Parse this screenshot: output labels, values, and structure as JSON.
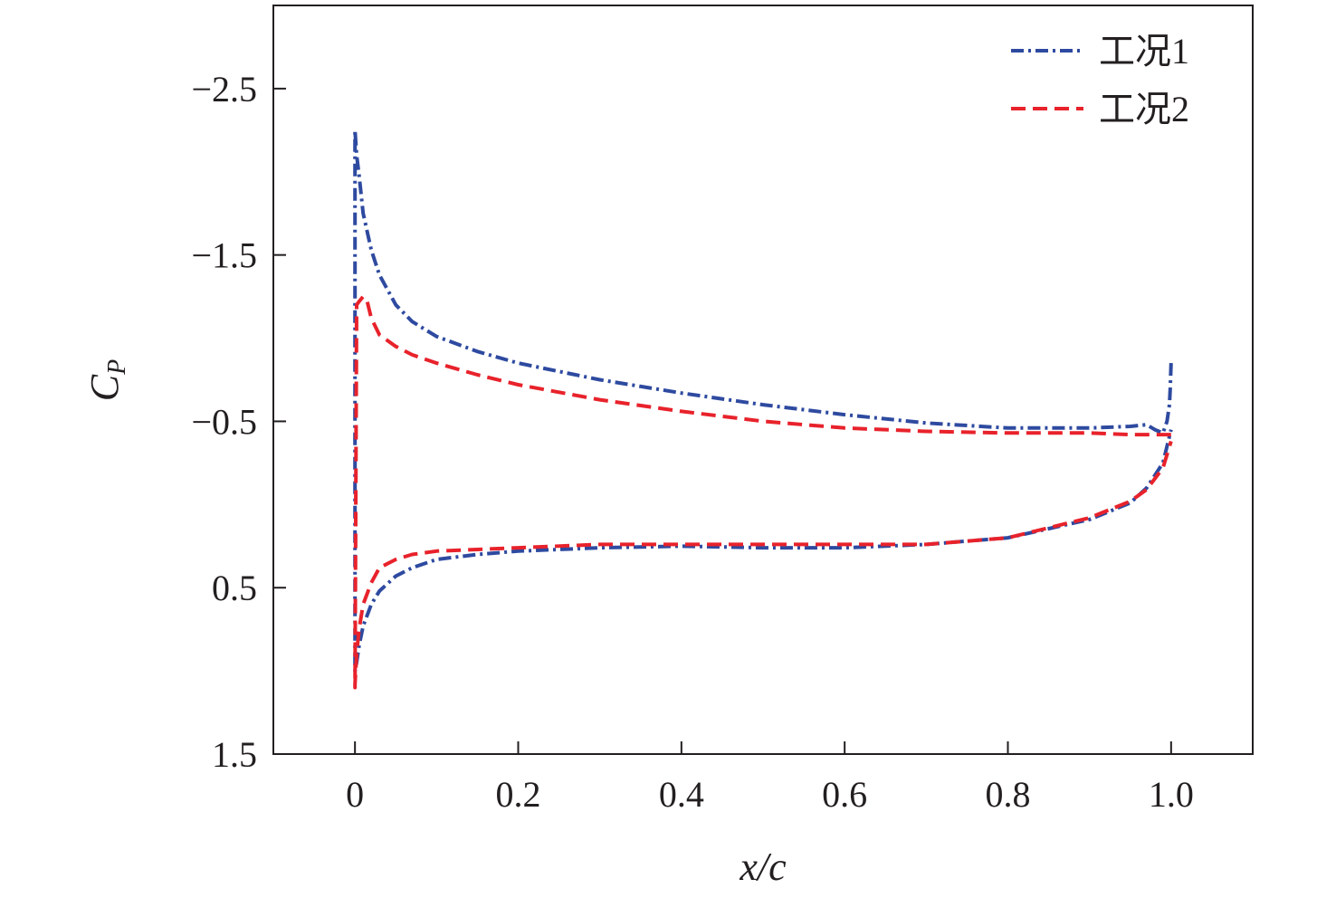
{
  "chart_data": {
    "type": "line",
    "xlabel": "x/c",
    "ylabel_main": "C",
    "ylabel_sub": "P",
    "xlim": [
      -0.1,
      1.1
    ],
    "ylim": [
      -3.0,
      1.5
    ],
    "y_inverted": true,
    "xticks": [
      0,
      0.2,
      0.4,
      0.6,
      0.8,
      1.0
    ],
    "xtick_labels": [
      "0",
      "0.2",
      "0.4",
      "0.6",
      "0.8",
      "1.0"
    ],
    "yticks": [
      -2.5,
      -1.5,
      -0.5,
      0.5,
      1.5
    ],
    "ytick_labels": [
      "−2.5",
      "−1.5",
      "−0.5",
      "0.5",
      "1.5"
    ],
    "grid": false,
    "legend_position": "top-right",
    "series": [
      {
        "name": "工况1",
        "color": "#2e4aa0",
        "dash": "dashdot",
        "x": [
          1.0,
          0.999,
          0.998,
          0.995,
          0.99,
          0.98,
          0.97,
          0.95,
          0.9,
          0.8,
          0.7,
          0.6,
          0.5,
          0.4,
          0.3,
          0.2,
          0.15,
          0.1,
          0.07,
          0.05,
          0.03,
          0.02,
          0.01,
          0.005,
          0.002,
          0.0,
          0.0,
          0.002,
          0.005,
          0.01,
          0.02,
          0.03,
          0.05,
          0.07,
          0.1,
          0.15,
          0.2,
          0.3,
          0.4,
          0.5,
          0.6,
          0.7,
          0.8,
          0.9,
          0.95,
          0.97,
          0.99,
          1.0
        ],
        "y": [
          -0.85,
          -0.7,
          -0.6,
          -0.5,
          -0.43,
          -0.45,
          -0.48,
          -0.47,
          -0.46,
          -0.46,
          -0.49,
          -0.54,
          -0.6,
          -0.67,
          -0.75,
          -0.85,
          -0.92,
          -1.01,
          -1.1,
          -1.2,
          -1.38,
          -1.53,
          -1.75,
          -1.98,
          -2.1,
          -2.25,
          1.0,
          0.95,
          0.85,
          0.73,
          0.6,
          0.52,
          0.43,
          0.38,
          0.33,
          0.3,
          0.28,
          0.26,
          0.25,
          0.26,
          0.26,
          0.24,
          0.2,
          0.09,
          -0.01,
          -0.1,
          -0.25,
          -0.45
        ]
      },
      {
        "name": "工况2",
        "color": "#e8222b",
        "dash": "dash",
        "x": [
          1.0,
          0.99,
          0.95,
          0.9,
          0.8,
          0.7,
          0.6,
          0.5,
          0.4,
          0.3,
          0.2,
          0.15,
          0.1,
          0.07,
          0.05,
          0.03,
          0.02,
          0.015,
          0.01,
          0.005,
          0.002,
          0.0,
          0.0,
          0.002,
          0.005,
          0.01,
          0.02,
          0.03,
          0.05,
          0.07,
          0.1,
          0.15,
          0.2,
          0.3,
          0.4,
          0.5,
          0.6,
          0.7,
          0.8,
          0.9,
          0.95,
          0.97,
          0.99,
          1.0
        ],
        "y": [
          -0.42,
          -0.42,
          -0.42,
          -0.43,
          -0.43,
          -0.44,
          -0.46,
          -0.5,
          -0.56,
          -0.63,
          -0.72,
          -0.78,
          -0.85,
          -0.9,
          -0.95,
          -1.02,
          -1.12,
          -1.22,
          -1.25,
          -1.22,
          -1.2,
          1.1,
          1.08,
          0.9,
          0.75,
          0.6,
          0.47,
          0.38,
          0.33,
          0.3,
          0.28,
          0.27,
          0.26,
          0.24,
          0.24,
          0.24,
          0.24,
          0.24,
          0.2,
          0.08,
          -0.02,
          -0.09,
          -0.22,
          -0.38
        ]
      }
    ]
  }
}
